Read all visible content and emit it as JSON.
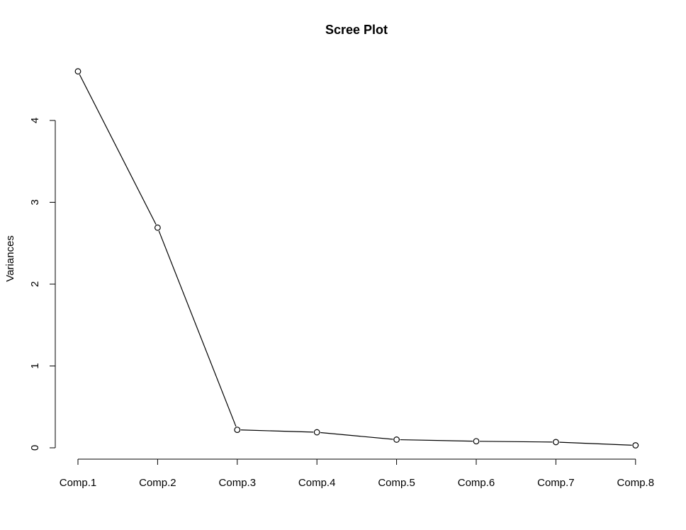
{
  "chart_data": {
    "type": "line",
    "title": "Scree Plot",
    "xlabel": "",
    "ylabel": "Variances",
    "categories": [
      "Comp.1",
      "Comp.2",
      "Comp.3",
      "Comp.4",
      "Comp.5",
      "Comp.6",
      "Comp.7",
      "Comp.8"
    ],
    "values": [
      4.6,
      2.69,
      0.22,
      0.19,
      0.1,
      0.08,
      0.07,
      0.03
    ],
    "y_ticks": [
      "0",
      "1",
      "2",
      "3",
      "4"
    ],
    "ylim": [
      0,
      4.6
    ],
    "grid": false,
    "legend": false,
    "markers": "open-circle"
  }
}
